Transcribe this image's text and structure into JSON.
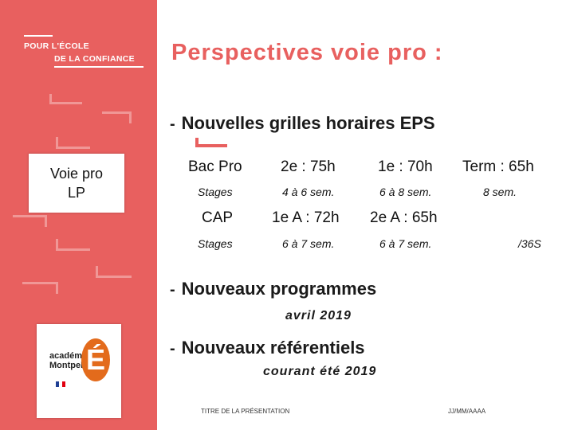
{
  "logo": {
    "line1": "POUR L'ÉCOLE",
    "line2": "DE LA CONFIANCE"
  },
  "title": "Perspectives voie pro :",
  "side_box": {
    "line1": "Voie pro",
    "line2": "LP"
  },
  "bullets": [
    {
      "dash": "-",
      "text": "Nouvelles grilles horaires EPS"
    },
    {
      "dash": "-",
      "text": "Nouveaux programmes"
    },
    {
      "dash": "-",
      "text": "Nouveaux référentiels"
    }
  ],
  "table": {
    "row1": [
      "Bac Pro",
      "2e : 75h",
      "1e : 70h",
      "Term : 65h"
    ],
    "row2": [
      "Stages",
      "4 à 6 sem.",
      "6 à 8 sem.",
      "8 sem."
    ],
    "row3": [
      "CAP",
      "1e A  : 72h",
      "2e A : 65h"
    ],
    "row4": [
      "Stages",
      "6 à 7 sem.",
      "6 à 7 sem.",
      "/36S"
    ]
  },
  "notes": {
    "programmes": "avril 2019",
    "referentiels": "courant été 2019"
  },
  "academy": {
    "line1": "académie",
    "line2": "Montpellier",
    "letter": "É"
  },
  "footer": {
    "title": "TITRE DE LA PRÉSENTATION",
    "date": "JJ/MM/AAAA"
  },
  "colors": {
    "accent": "#e8605f",
    "academy_orange": "#e36b1c"
  }
}
